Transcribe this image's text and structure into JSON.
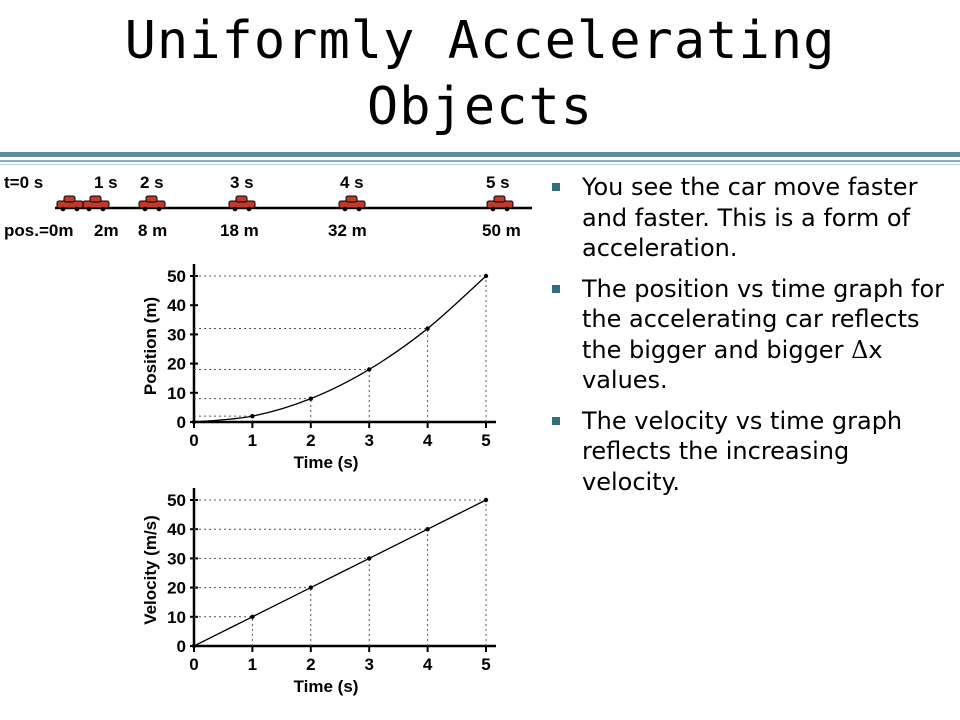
{
  "slide": {
    "title_line1": "Uniformly Accelerating",
    "title_line2": "Objects"
  },
  "bullets": {
    "b1": "You see the car move faster and faster. This is a form of acceleration.",
    "b2_pre": "The position vs time graph for the accelerating car reflects the bigger and bigger ",
    "b2_delta": "Δ",
    "b2_post": "x values.",
    "b3": "The velocity vs time graph reflects the increasing velocity."
  },
  "motion_strip": {
    "time_labels": [
      "t=0 s",
      "1 s",
      "2 s",
      "3 s",
      "4 s",
      "5 s"
    ],
    "position_labels": [
      "pos.=0m",
      "2m",
      "8 m",
      "18 m",
      "32 m",
      "50 m"
    ]
  },
  "colors": {
    "accent_rule": "#5c8f9e",
    "bullet": "#2f6f80",
    "car": "#c0392b"
  },
  "chart_data": [
    {
      "type": "line",
      "xlabel": "Time (s)",
      "ylabel": "Position (m)",
      "x_ticks": [
        0,
        1,
        2,
        3,
        4,
        5
      ],
      "y_ticks": [
        0,
        10,
        20,
        30,
        40,
        50
      ],
      "xlim": [
        0,
        5
      ],
      "ylim": [
        0,
        50
      ],
      "grid": "dotted guides to marked points",
      "series": [
        {
          "x": [
            0,
            1,
            2,
            3,
            4,
            5
          ],
          "y": [
            0,
            2,
            8,
            18,
            32,
            50
          ]
        }
      ]
    },
    {
      "type": "line",
      "xlabel": "Time (s)",
      "ylabel": "Velocity (m/s)",
      "x_ticks": [
        0,
        1,
        2,
        3,
        4,
        5
      ],
      "y_ticks": [
        0,
        10,
        20,
        30,
        40,
        50
      ],
      "xlim": [
        0,
        5
      ],
      "ylim": [
        0,
        50
      ],
      "grid": "dotted guides to marked points",
      "series": [
        {
          "x": [
            0,
            1,
            2,
            3,
            4,
            5
          ],
          "y": [
            0,
            10,
            20,
            30,
            40,
            50
          ]
        }
      ]
    }
  ]
}
